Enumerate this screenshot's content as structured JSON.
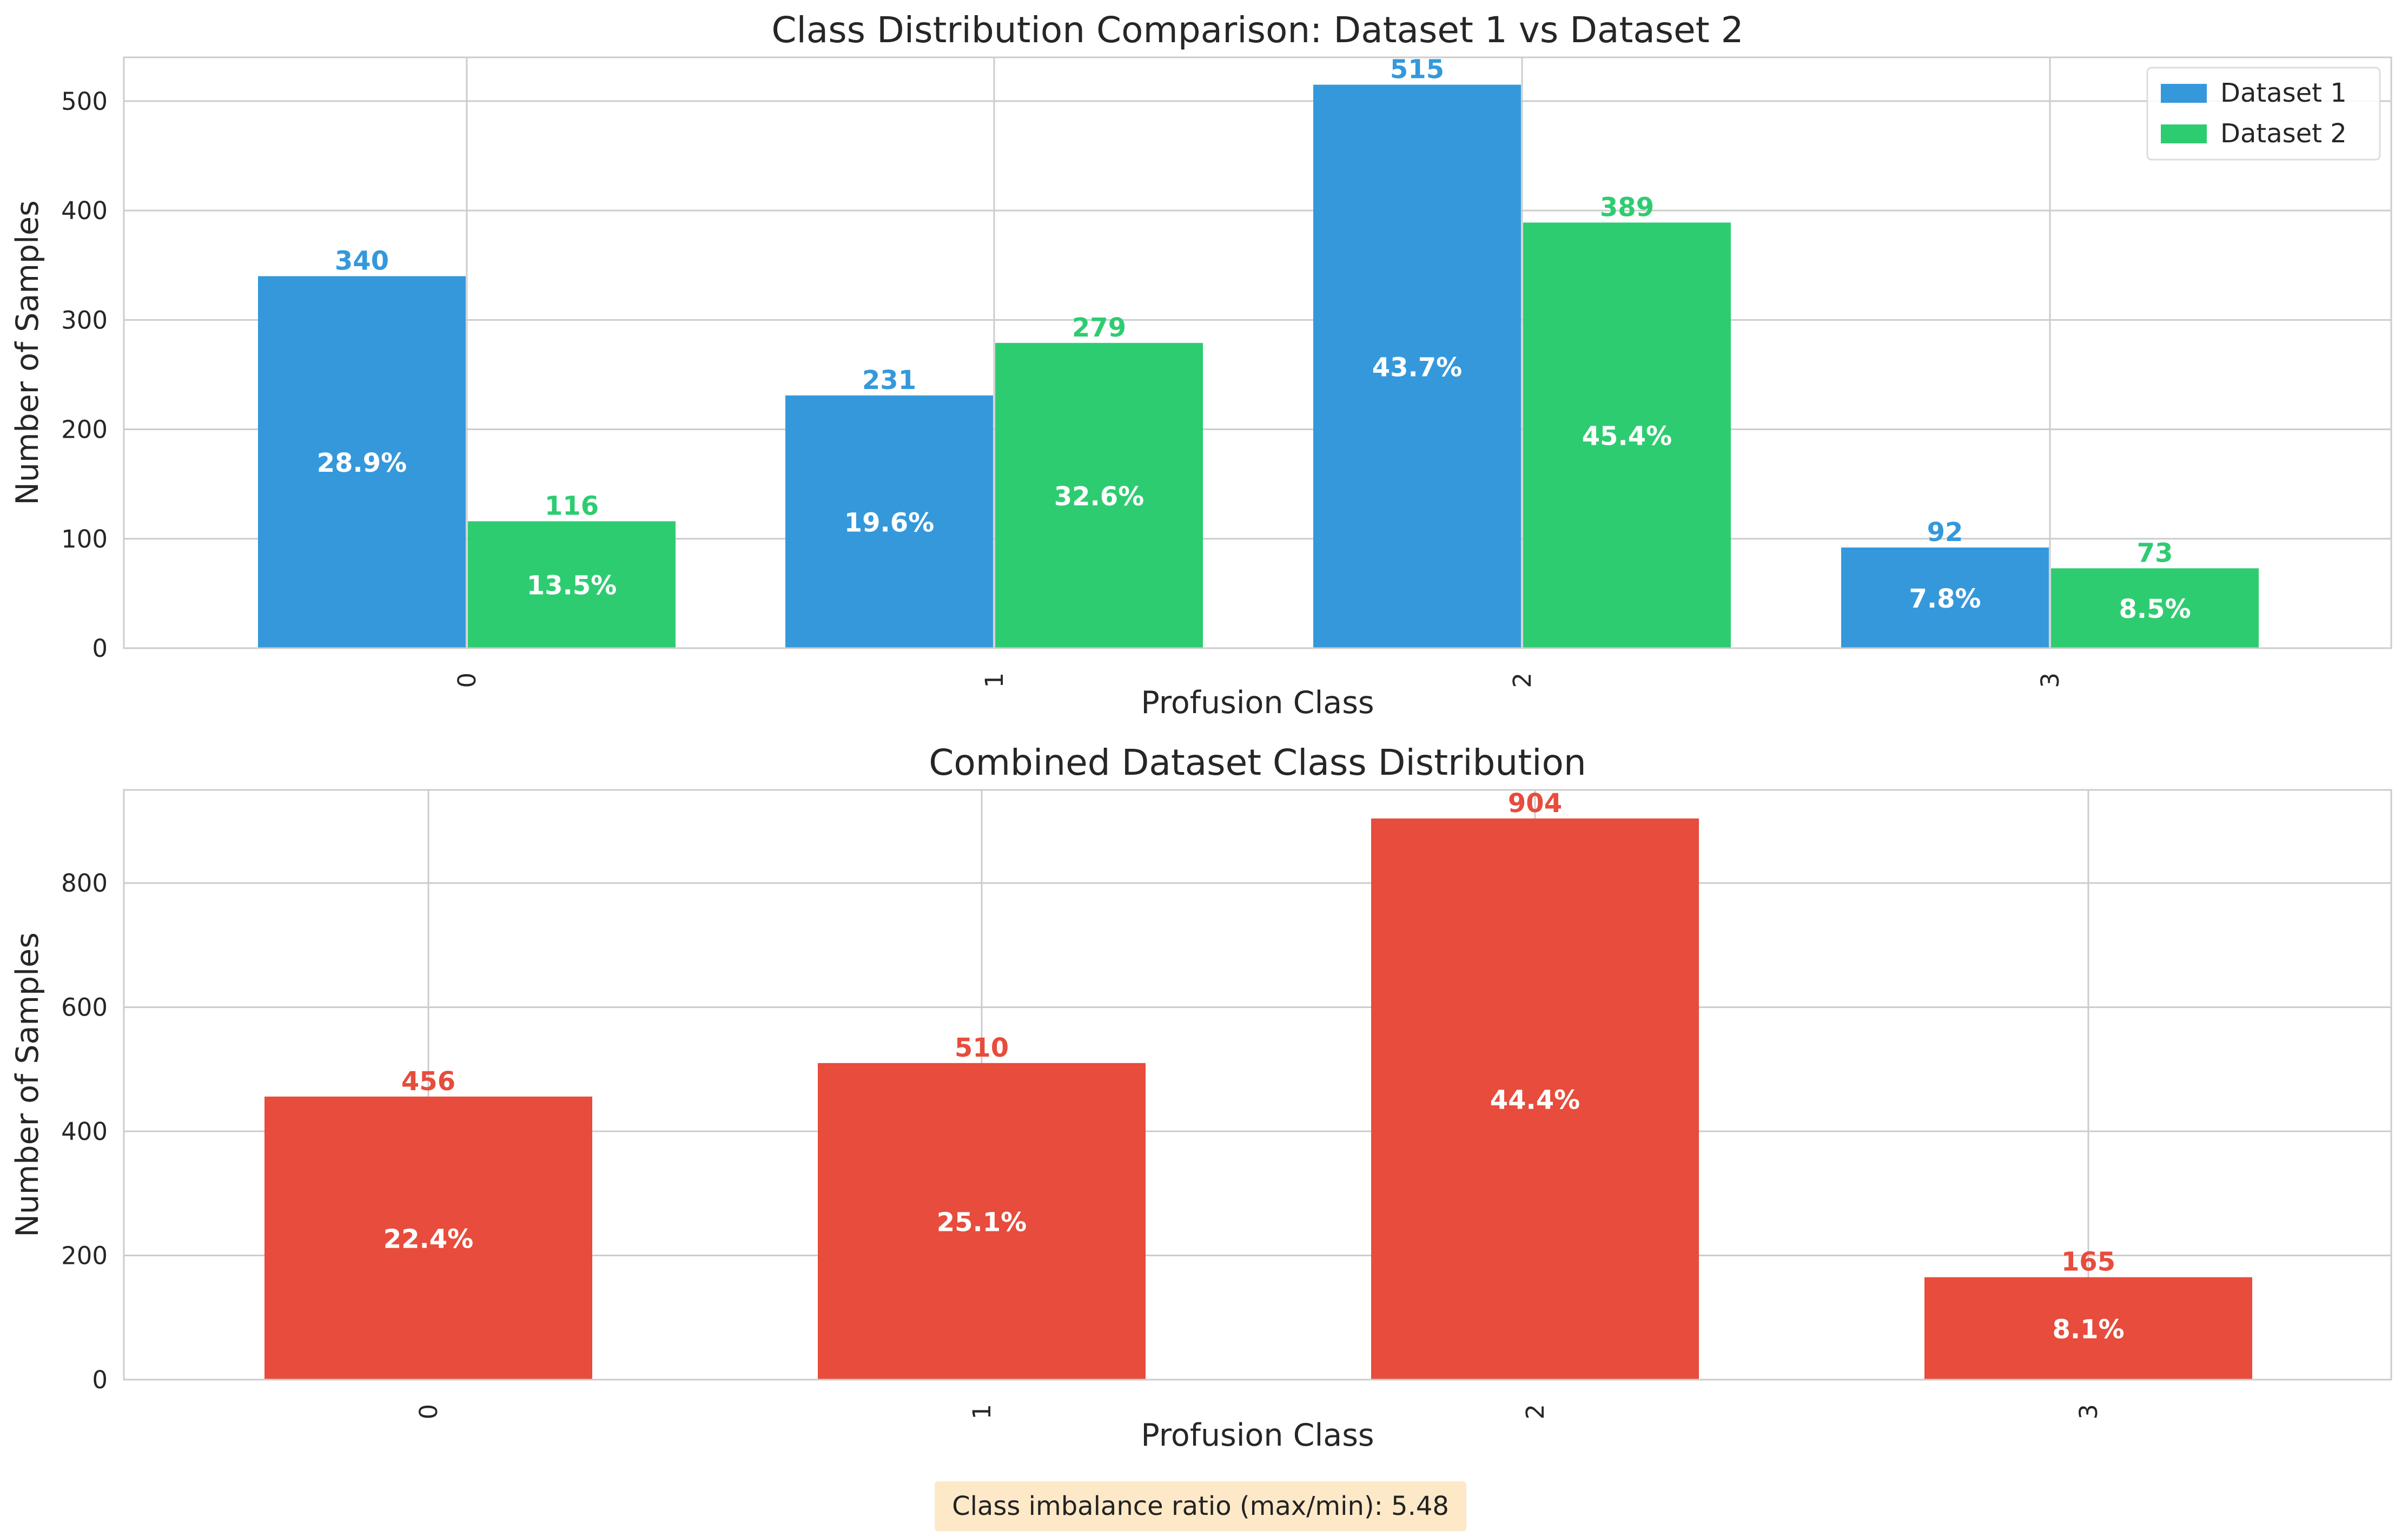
{
  "colors": {
    "dataset1": "#3598db",
    "dataset2": "#2ecc71",
    "combined": "#e74c3c",
    "grid": "#cccccc",
    "axis": "#cccccc",
    "text": "#262626",
    "note_bg": "#fde9c8"
  },
  "note": "Class imbalance ratio (max/min): 5.48",
  "chart_data": [
    {
      "type": "bar",
      "title": "Class Distribution Comparison: Dataset 1 vs Dataset 2",
      "xlabel": "Profusion Class",
      "ylabel": "Number of Samples",
      "categories": [
        "0",
        "1",
        "2",
        "3"
      ],
      "ylim": [
        0,
        540
      ],
      "yticks": [
        0,
        100,
        200,
        300,
        400,
        500
      ],
      "grid": true,
      "legend": "top-right",
      "series": [
        {
          "name": "Dataset 1",
          "values": [
            340,
            231,
            515,
            92
          ],
          "value_labels": [
            "340",
            "231",
            "515",
            "92"
          ],
          "percent_labels": [
            "28.9%",
            "19.6%",
            "43.7%",
            "7.8%"
          ]
        },
        {
          "name": "Dataset 2",
          "values": [
            116,
            279,
            389,
            73
          ],
          "value_labels": [
            "116",
            "279",
            "389",
            "73"
          ],
          "percent_labels": [
            "13.5%",
            "32.6%",
            "45.4%",
            "8.5%"
          ]
        }
      ]
    },
    {
      "type": "bar",
      "title": "Combined Dataset Class Distribution",
      "xlabel": "Profusion Class",
      "ylabel": "Number of Samples",
      "categories": [
        "0",
        "1",
        "2",
        "3"
      ],
      "ylim": [
        0,
        950
      ],
      "yticks": [
        0,
        200,
        400,
        600,
        800
      ],
      "grid": true,
      "series": [
        {
          "values": [
            456,
            510,
            904,
            165
          ],
          "value_labels": [
            "456",
            "510",
            "904",
            "165"
          ],
          "percent_labels": [
            "22.4%",
            "25.1%",
            "44.4%",
            "8.1%"
          ]
        }
      ]
    }
  ]
}
